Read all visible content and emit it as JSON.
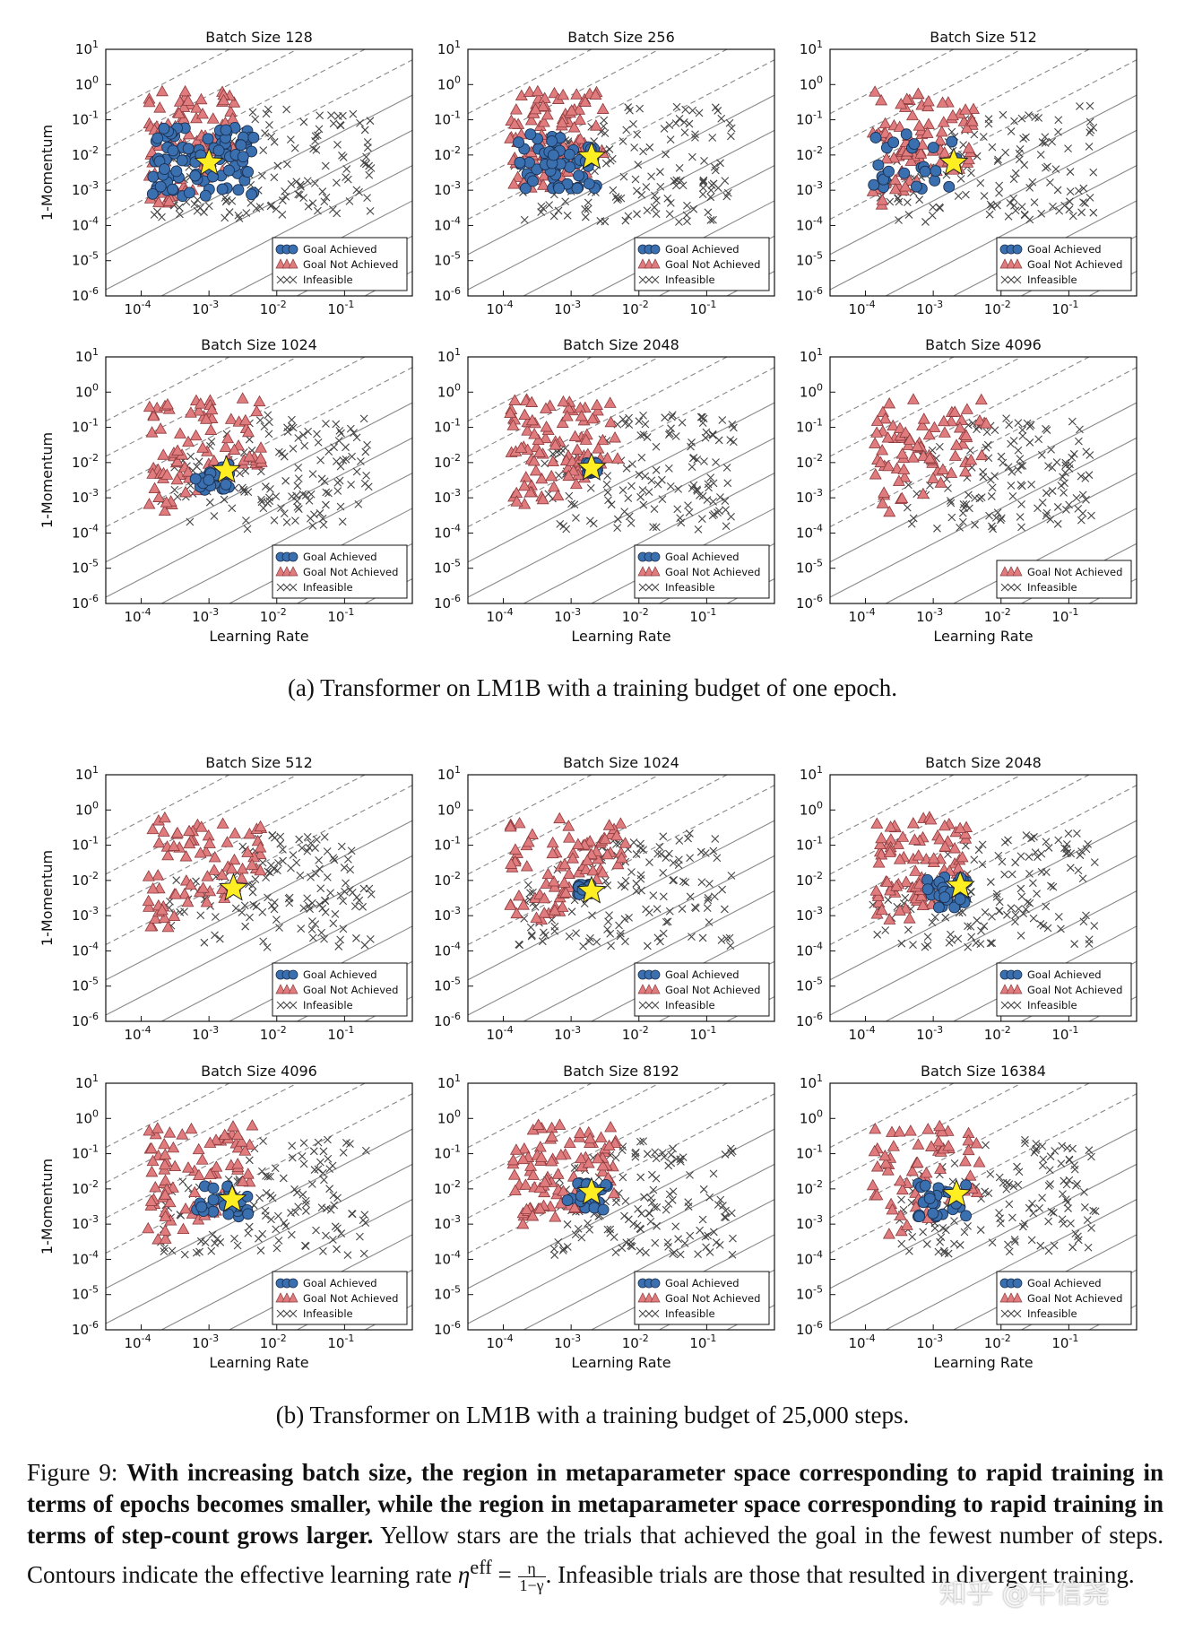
{
  "figure": {
    "caption_a": "(a) Transformer on LM1B with a training budget of one epoch.",
    "caption_b": "(b) Transformer on LM1B with a training budget of 25,000 steps.",
    "figure_label": "Figure 9:",
    "caption_bold": "With increasing batch size, the region in metaparameter space corresponding to rapid training in terms of epochs becomes smaller, while the region in metaparameter space corresponding to rapid training in terms of step-count grows larger.",
    "caption_rest_1": "Yellow stars are the trials that achieved the goal in the fewest number of steps. Contours indicate the effective learning rate",
    "eta_symbol": "η",
    "eta_sup": "eff",
    "eta_eq": "=",
    "frac_num": "η",
    "frac_den": "1−γ",
    "caption_rest_2": ". Infeasible trials are those that resulted in divergent training.",
    "watermark": "知乎 @牛信尧"
  },
  "chart_data": [
    {
      "type": "scatter",
      "title": "Batch Size 128",
      "xlabel": "",
      "ylabel": "1-Momentum",
      "xlim": [
        3e-05,
        1
      ],
      "ylim": [
        1e-06,
        10
      ],
      "legend": [
        "Goal Achieved",
        "Goal Not Achieved",
        "Infeasible"
      ],
      "star": [
        0.001,
        0.006
      ],
      "goal": {
        "lr": [
          -3.85,
          -2.3
        ],
        "m": [
          -3.2,
          -1.2
        ]
      },
      "notachieved": {
        "lr": [
          -3.9,
          -2.6
        ],
        "m": [
          -3.6,
          -0.2
        ]
      },
      "infeasible": {
        "lr": [
          -3.9,
          -0.6
        ],
        "m": [
          -3.8,
          -0.6
        ]
      }
    },
    {
      "type": "scatter",
      "title": "Batch Size 256",
      "xlabel": "",
      "ylabel": "",
      "xlim": [
        3e-05,
        1
      ],
      "ylim": [
        1e-06,
        10
      ],
      "legend": [
        "Goal Achieved",
        "Goal Not Achieved",
        "Infeasible"
      ],
      "star": [
        0.002,
        0.009
      ],
      "goal": {
        "lr": [
          -3.8,
          -2.6
        ],
        "m": [
          -3.0,
          -1.4
        ]
      },
      "notachieved": {
        "lr": [
          -3.9,
          -2.5
        ],
        "m": [
          -3.0,
          -0.2
        ]
      },
      "infeasible": {
        "lr": [
          -3.9,
          -0.6
        ],
        "m": [
          -3.9,
          -0.6
        ]
      }
    },
    {
      "type": "scatter",
      "title": "Batch Size 512",
      "xlabel": "",
      "ylabel": "",
      "xlim": [
        3e-05,
        1
      ],
      "ylim": [
        1e-06,
        10
      ],
      "legend": [
        "Goal Achieved",
        "Goal Not Achieved",
        "Infeasible"
      ],
      "star": [
        0.002,
        0.006
      ],
      "goal": {
        "lr": [
          -3.9,
          -2.6
        ],
        "m": [
          -3.0,
          -1.4
        ]
      },
      "notachieved": {
        "lr": [
          -3.9,
          -2.4
        ],
        "m": [
          -3.6,
          -0.2
        ]
      },
      "infeasible": {
        "lr": [
          -3.8,
          -0.6
        ],
        "m": [
          -3.9,
          -0.6
        ]
      }
    },
    {
      "type": "scatter",
      "title": "Batch Size 1024",
      "xlabel": "Learning Rate",
      "ylabel": "1-Momentum",
      "xlim": [
        3e-05,
        1
      ],
      "ylim": [
        1e-06,
        10
      ],
      "legend": [
        "Goal Achieved",
        "Goal Not Achieved",
        "Infeasible"
      ],
      "star": [
        0.0018,
        0.006
      ],
      "goal": {
        "lr": [
          -3.2,
          -2.7
        ],
        "m": [
          -2.8,
          -2.0
        ]
      },
      "notachieved": {
        "lr": [
          -3.9,
          -2.2
        ],
        "m": [
          -3.6,
          -0.2
        ]
      },
      "infeasible": {
        "lr": [
          -3.8,
          -0.6
        ],
        "m": [
          -3.9,
          -0.6
        ]
      }
    },
    {
      "type": "scatter",
      "title": "Batch Size 2048",
      "xlabel": "Learning Rate",
      "ylabel": "",
      "xlim": [
        3e-05,
        1
      ],
      "ylim": [
        1e-06,
        10
      ],
      "legend": [
        "Goal Achieved",
        "Goal Not Achieved",
        "Infeasible"
      ],
      "star": [
        0.002,
        0.007
      ],
      "goal": {
        "lr": [
          -2.8,
          -2.6
        ],
        "m": [
          -2.3,
          -2.0
        ]
      },
      "notachieved": {
        "lr": [
          -3.9,
          -2.3
        ],
        "m": [
          -3.3,
          -0.2
        ]
      },
      "infeasible": {
        "lr": [
          -3.4,
          -0.6
        ],
        "m": [
          -3.9,
          -0.6
        ]
      }
    },
    {
      "type": "scatter",
      "title": "Batch Size 4096",
      "xlabel": "Learning Rate",
      "ylabel": "",
      "xlim": [
        3e-05,
        1
      ],
      "ylim": [
        1e-06,
        10
      ],
      "legend": [
        "Goal Not Achieved",
        "Infeasible"
      ],
      "star": null,
      "goal": null,
      "notachieved": {
        "lr": [
          -3.9,
          -2.2
        ],
        "m": [
          -3.8,
          -0.2
        ]
      },
      "infeasible": {
        "lr": [
          -3.4,
          -0.6
        ],
        "m": [
          -3.9,
          -0.6
        ]
      }
    },
    {
      "type": "scatter",
      "title": "Batch Size 512",
      "xlabel": "",
      "ylabel": "1-Momentum",
      "xlim": [
        3e-05,
        1
      ],
      "ylim": [
        1e-06,
        10
      ],
      "legend": [
        "Goal Achieved",
        "Goal Not Achieved",
        "Infeasible"
      ],
      "star": [
        0.0023,
        0.006
      ],
      "goal": null,
      "notachieved": {
        "lr": [
          -3.9,
          -2.2
        ],
        "m": [
          -3.6,
          -0.2
        ]
      },
      "infeasible": {
        "lr": [
          -3.6,
          -0.6
        ],
        "m": [
          -3.9,
          -0.6
        ]
      }
    },
    {
      "type": "scatter",
      "title": "Batch Size 1024",
      "xlabel": "",
      "ylabel": "",
      "xlim": [
        3e-05,
        1
      ],
      "ylim": [
        1e-06,
        10
      ],
      "legend": [
        "Goal Achieved",
        "Goal Not Achieved",
        "Infeasible"
      ],
      "star": [
        0.002,
        0.005
      ],
      "goal": {
        "lr": [
          -2.9,
          -2.7
        ],
        "m": [
          -2.4,
          -2.1
        ]
      },
      "notachieved": {
        "lr": [
          -3.9,
          -2.2
        ],
        "m": [
          -3.4,
          -0.2
        ]
      },
      "infeasible": {
        "lr": [
          -3.8,
          -0.6
        ],
        "m": [
          -3.9,
          -0.6
        ]
      }
    },
    {
      "type": "scatter",
      "title": "Batch Size 2048",
      "xlabel": "",
      "ylabel": "",
      "xlim": [
        3e-05,
        1
      ],
      "ylim": [
        1e-06,
        10
      ],
      "legend": [
        "Goal Achieved",
        "Goal Not Achieved",
        "Infeasible"
      ],
      "star": [
        0.0025,
        0.007
      ],
      "goal": {
        "lr": [
          -3.1,
          -2.5
        ],
        "m": [
          -2.8,
          -1.9
        ]
      },
      "notachieved": {
        "lr": [
          -3.9,
          -2.5
        ],
        "m": [
          -3.2,
          -0.2
        ]
      },
      "infeasible": {
        "lr": [
          -3.9,
          -0.6
        ],
        "m": [
          -3.9,
          -0.6
        ]
      }
    },
    {
      "type": "scatter",
      "title": "Batch Size 4096",
      "xlabel": "Learning Rate",
      "ylabel": "1-Momentum",
      "xlim": [
        3e-05,
        1
      ],
      "ylim": [
        1e-06,
        10
      ],
      "legend": [
        "Goal Achieved",
        "Goal Not Achieved",
        "Infeasible"
      ],
      "star": [
        0.0022,
        0.005
      ],
      "goal": {
        "lr": [
          -3.2,
          -2.4
        ],
        "m": [
          -2.8,
          -1.8
        ]
      },
      "notachieved": {
        "lr": [
          -3.9,
          -2.3
        ],
        "m": [
          -3.8,
          -0.2
        ]
      },
      "infeasible": {
        "lr": [
          -3.8,
          -0.6
        ],
        "m": [
          -3.9,
          -0.6
        ]
      }
    },
    {
      "type": "scatter",
      "title": "Batch Size 8192",
      "xlabel": "Learning Rate",
      "ylabel": "",
      "xlim": [
        3e-05,
        1
      ],
      "ylim": [
        1e-06,
        10
      ],
      "legend": [
        "Goal Achieved",
        "Goal Not Achieved",
        "Infeasible"
      ],
      "star": [
        0.002,
        0.008
      ],
      "goal": {
        "lr": [
          -3.1,
          -2.4
        ],
        "m": [
          -2.6,
          -1.7
        ]
      },
      "notachieved": {
        "lr": [
          -3.9,
          -2.3
        ],
        "m": [
          -3.3,
          -0.2
        ]
      },
      "infeasible": {
        "lr": [
          -3.4,
          -0.6
        ],
        "m": [
          -3.9,
          -0.6
        ]
      }
    },
    {
      "type": "scatter",
      "title": "Batch Size 16384",
      "xlabel": "Learning Rate",
      "ylabel": "",
      "xlim": [
        3e-05,
        1
      ],
      "ylim": [
        1e-06,
        10
      ],
      "legend": [
        "Goal Achieved",
        "Goal Not Achieved",
        "Infeasible"
      ],
      "star": [
        0.0022,
        0.007
      ],
      "goal": {
        "lr": [
          -3.3,
          -2.5
        ],
        "m": [
          -2.8,
          -1.8
        ]
      },
      "notachieved": {
        "lr": [
          -3.9,
          -2.2
        ],
        "m": [
          -3.8,
          -0.2
        ]
      },
      "infeasible": {
        "lr": [
          -3.5,
          -0.6
        ],
        "m": [
          -3.9,
          -0.6
        ]
      }
    }
  ],
  "colors": {
    "goal": "#3a6fb0",
    "notachieved": "#e07b7e",
    "infeasible": "#444444",
    "star": "#ffee22",
    "contour": "#888888"
  }
}
